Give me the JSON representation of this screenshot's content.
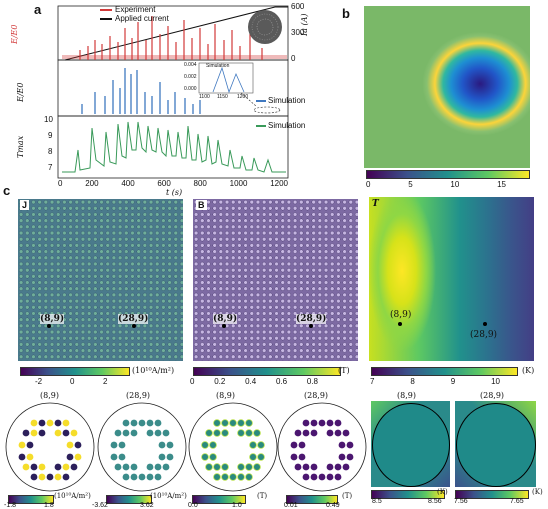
{
  "panels": {
    "a": "a",
    "b": "b",
    "c": "c"
  },
  "panel_a": {
    "top": {
      "ylabel_left": "E/E0",
      "ylabel_right": "Ia (A)",
      "right_ticks": [
        "600",
        "300",
        "0"
      ],
      "legend": [
        "Experiment",
        "Applied current"
      ]
    },
    "middle": {
      "ylabel": "E/E0",
      "legend": [
        "Simulation"
      ],
      "inset_legend": "Simulation",
      "inset_yticks": [
        "0.004",
        "0.002",
        "0.000"
      ],
      "inset_xticks": [
        "1100",
        "1150",
        "1200"
      ]
    },
    "bottom": {
      "ylabel": "Tmax",
      "yticks": [
        "10",
        "9",
        "8",
        "7"
      ],
      "legend": [
        "Simulation"
      ],
      "xticks": [
        "0",
        "200",
        "400",
        "600",
        "800",
        "1000",
        "1200"
      ],
      "xlabel": "t (s)"
    }
  },
  "panel_b": {
    "cbar_ticks": [
      "0",
      "5",
      "10",
      "15"
    ]
  },
  "panel_c": {
    "J": {
      "corner": "J",
      "point_labels": [
        "(8,9)",
        "(28,9)"
      ],
      "cbar_ticks": [
        "-2",
        "0",
        "2"
      ],
      "cbar_unit": "(10¹⁰A/m²)"
    },
    "B": {
      "corner": "B",
      "point_labels": [
        "(8,9)",
        "(28,9)"
      ],
      "cbar_ticks": [
        "0",
        "0.2",
        "0.4",
        "0.6",
        "0.8"
      ],
      "cbar_unit": "(T)"
    },
    "T": {
      "corner": "T",
      "point_labels": [
        "(8,9)",
        "(28,9)"
      ],
      "cbar_ticks": [
        "7",
        "8",
        "9",
        "10"
      ],
      "cbar_unit": "(K)"
    },
    "circles": [
      {
        "title": "(8,9)",
        "min": "-1.8",
        "max": "1.8",
        "unit": "(10¹⁰A/m²)"
      },
      {
        "title": "(28,9)",
        "min": "-3.62",
        "max": "3.62",
        "unit": "(10¹⁰A/m²)"
      },
      {
        "title": "(8,9)",
        "min": "0.0",
        "max": "1.0",
        "unit": "(T)"
      },
      {
        "title": "(28,9)",
        "min": "0.01",
        "max": "0.49",
        "unit": "(T)"
      },
      {
        "title": "(8,9)",
        "min": "8.5",
        "max": "8.56",
        "unit": "(K)"
      },
      {
        "title": "(28,9)",
        "min": "7.56",
        "max": "7.65",
        "unit": "(K)"
      }
    ]
  },
  "colors": {
    "experiment": "#d23a3a",
    "applied": "#111111",
    "sim_blue": "#3f78c0",
    "sim_green": "#3a9a5a"
  }
}
